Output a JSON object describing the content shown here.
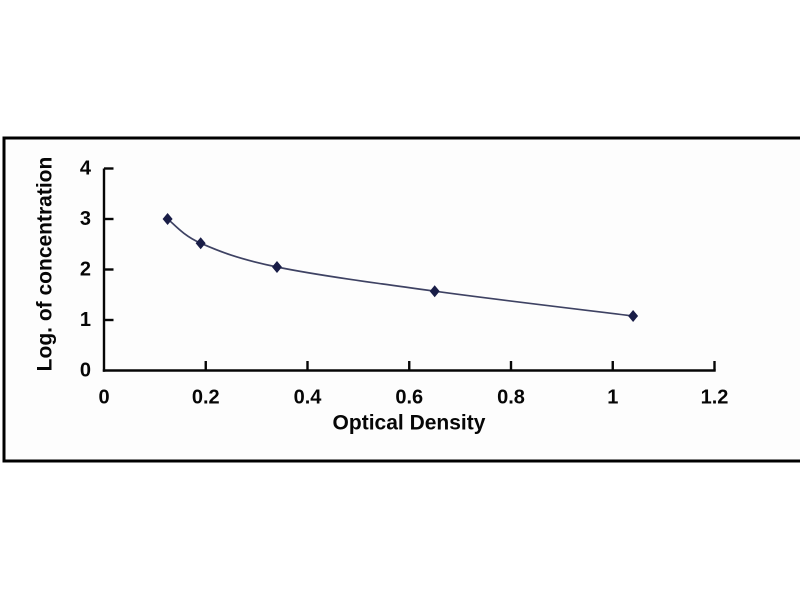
{
  "figure": {
    "background": "#ffffff"
  },
  "chart_data": {
    "type": "scatter",
    "title": "",
    "xlabel": "Optical Density",
    "ylabel": "Log. of concentration",
    "x": [
      0.125,
      0.19,
      0.34,
      0.65,
      1.04
    ],
    "y": [
      3.0,
      2.52,
      2.05,
      1.57,
      1.08
    ],
    "xlim": [
      0,
      1.2
    ],
    "ylim": [
      0,
      4
    ],
    "x_ticks": [
      0,
      0.2,
      0.4,
      0.6,
      0.8,
      1,
      1.2
    ],
    "x_tick_labels": [
      "0",
      "0.2",
      "0.4",
      "0.6",
      "0.8",
      "1",
      "1.2"
    ],
    "y_ticks": [
      0,
      1,
      2,
      3,
      4
    ],
    "y_tick_labels": [
      "0",
      "1",
      "2",
      "3",
      "4"
    ],
    "grid": false,
    "legend": false,
    "line_style": "smooth",
    "marker": "diamond",
    "colors": {
      "marker": "#191d47",
      "line": "#3e4263",
      "axis": "#060606",
      "text": "#060606",
      "frame_border": "#000000",
      "plot_background": "#fdfdfd"
    }
  }
}
